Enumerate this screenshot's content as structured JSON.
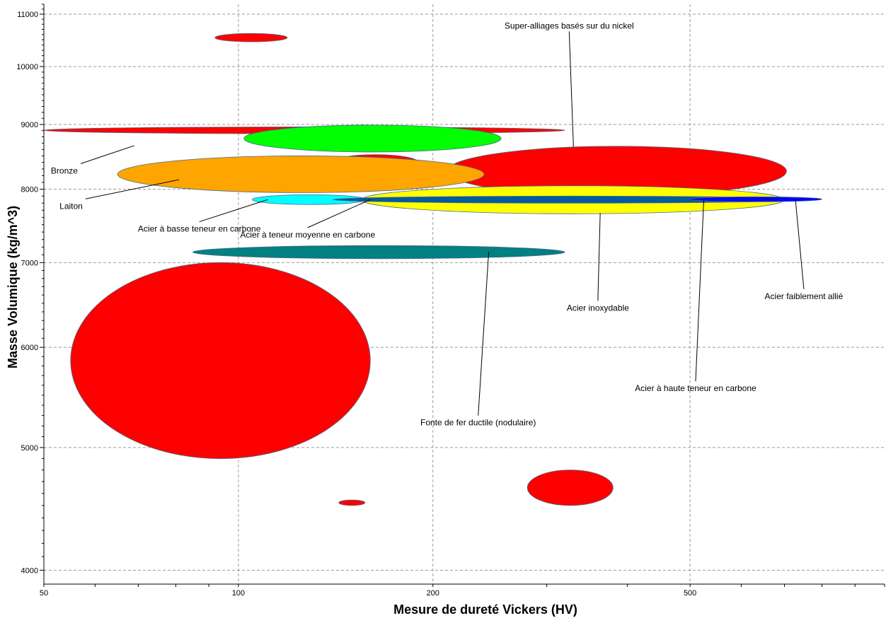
{
  "chart_data": {
    "type": "scatter",
    "title": "",
    "xlabel": "Mesure de dureté Vickers (HV)",
    "ylabel": "Masse Volumique (kg/m^3)",
    "x_scale": "log",
    "y_scale": "log",
    "xlim": [
      50,
      1000
    ],
    "ylim": [
      3900,
      11200
    ],
    "x_ticks": [
      50,
      100,
      200,
      500
    ],
    "y_ticks": [
      4000,
      5000,
      6000,
      7000,
      8000,
      9000,
      10000,
      11000
    ],
    "grid": true,
    "bubbles": [
      {
        "x": [
          50,
          320
        ],
        "y": [
          8850,
          8960
        ],
        "color": "#ff0000",
        "label": ""
      },
      {
        "x": [
          102,
          255
        ],
        "y": [
          8560,
          8990
        ],
        "color": "#00ff00",
        "label": ""
      },
      {
        "x": [
          92,
          119
        ],
        "y": [
          10460,
          10620
        ],
        "color": "#ff0000",
        "label": ""
      },
      {
        "x": [
          140,
          190
        ],
        "y": [
          8280,
          8520
        ],
        "color": "#ff0000",
        "label": ""
      },
      {
        "x": [
          210,
          705
        ],
        "y": [
          7900,
          8650
        ],
        "color": "#ff0000",
        "label": ""
      },
      {
        "x": [
          65,
          240
        ],
        "y": [
          7950,
          8500
        ],
        "color": "#ffa500",
        "label": ""
      },
      {
        "x": [
          155,
          700
        ],
        "y": [
          7650,
          8050
        ],
        "color": "#ffff00",
        "label": ""
      },
      {
        "x": [
          105,
          158
        ],
        "y": [
          7780,
          7920
        ],
        "color": "#00ffff",
        "label": ""
      },
      {
        "x": [
          140,
          760
        ],
        "y": [
          7800,
          7900
        ],
        "color": "#005aa0",
        "label": ""
      },
      {
        "x": [
          500,
          800
        ],
        "y": [
          7820,
          7890
        ],
        "color": "#0000ff",
        "label": ""
      },
      {
        "x": [
          85,
          320
        ],
        "y": [
          7050,
          7220
        ],
        "color": "#008080",
        "label": ""
      },
      {
        "x": [
          55,
          160
        ],
        "y": [
          4900,
          7000
        ],
        "color": "#ff0000",
        "label": ""
      },
      {
        "x": [
          143,
          157
        ],
        "y": [
          4500,
          4545
        ],
        "color": "#ff0000",
        "label": ""
      },
      {
        "x": [
          280,
          380
        ],
        "y": [
          4500,
          4800
        ],
        "color": "#ff0000",
        "label": ""
      }
    ],
    "annotations": [
      {
        "text": "Bronze",
        "label_x": 57,
        "label_y": 8380,
        "point_x": 69,
        "point_y": 8660
      },
      {
        "text": "Laiton",
        "label_x": 58,
        "label_y": 7860,
        "point_x": 81,
        "point_y": 8140
      },
      {
        "text": "Acier à basse teneur en carbone",
        "label_x": 87,
        "label_y": 7540,
        "point_x": 111,
        "point_y": 7850
      },
      {
        "text": "Acier à teneur moyenne en carbone",
        "label_x": 128,
        "label_y": 7460,
        "point_x": 160,
        "point_y": 7850
      },
      {
        "text": "Super-alliages basés sur du nickel",
        "label_x": 325,
        "label_y": 10660,
        "point_x": 330,
        "point_y": 8640
      },
      {
        "text": "Acier inoxydable",
        "label_x": 360,
        "label_y": 6530,
        "point_x": 363,
        "point_y": 7660
      },
      {
        "text": "Acier faiblement allié",
        "label_x": 750,
        "label_y": 6670,
        "point_x": 728,
        "point_y": 7840
      },
      {
        "text": "Acier à haute teneur en carbone",
        "label_x": 510,
        "label_y": 5640,
        "point_x": 525,
        "point_y": 7840
      },
      {
        "text": "Fonte de fer ductile (nodulaire)",
        "label_x": 235,
        "label_y": 5300,
        "point_x": 244,
        "point_y": 7140
      }
    ]
  }
}
